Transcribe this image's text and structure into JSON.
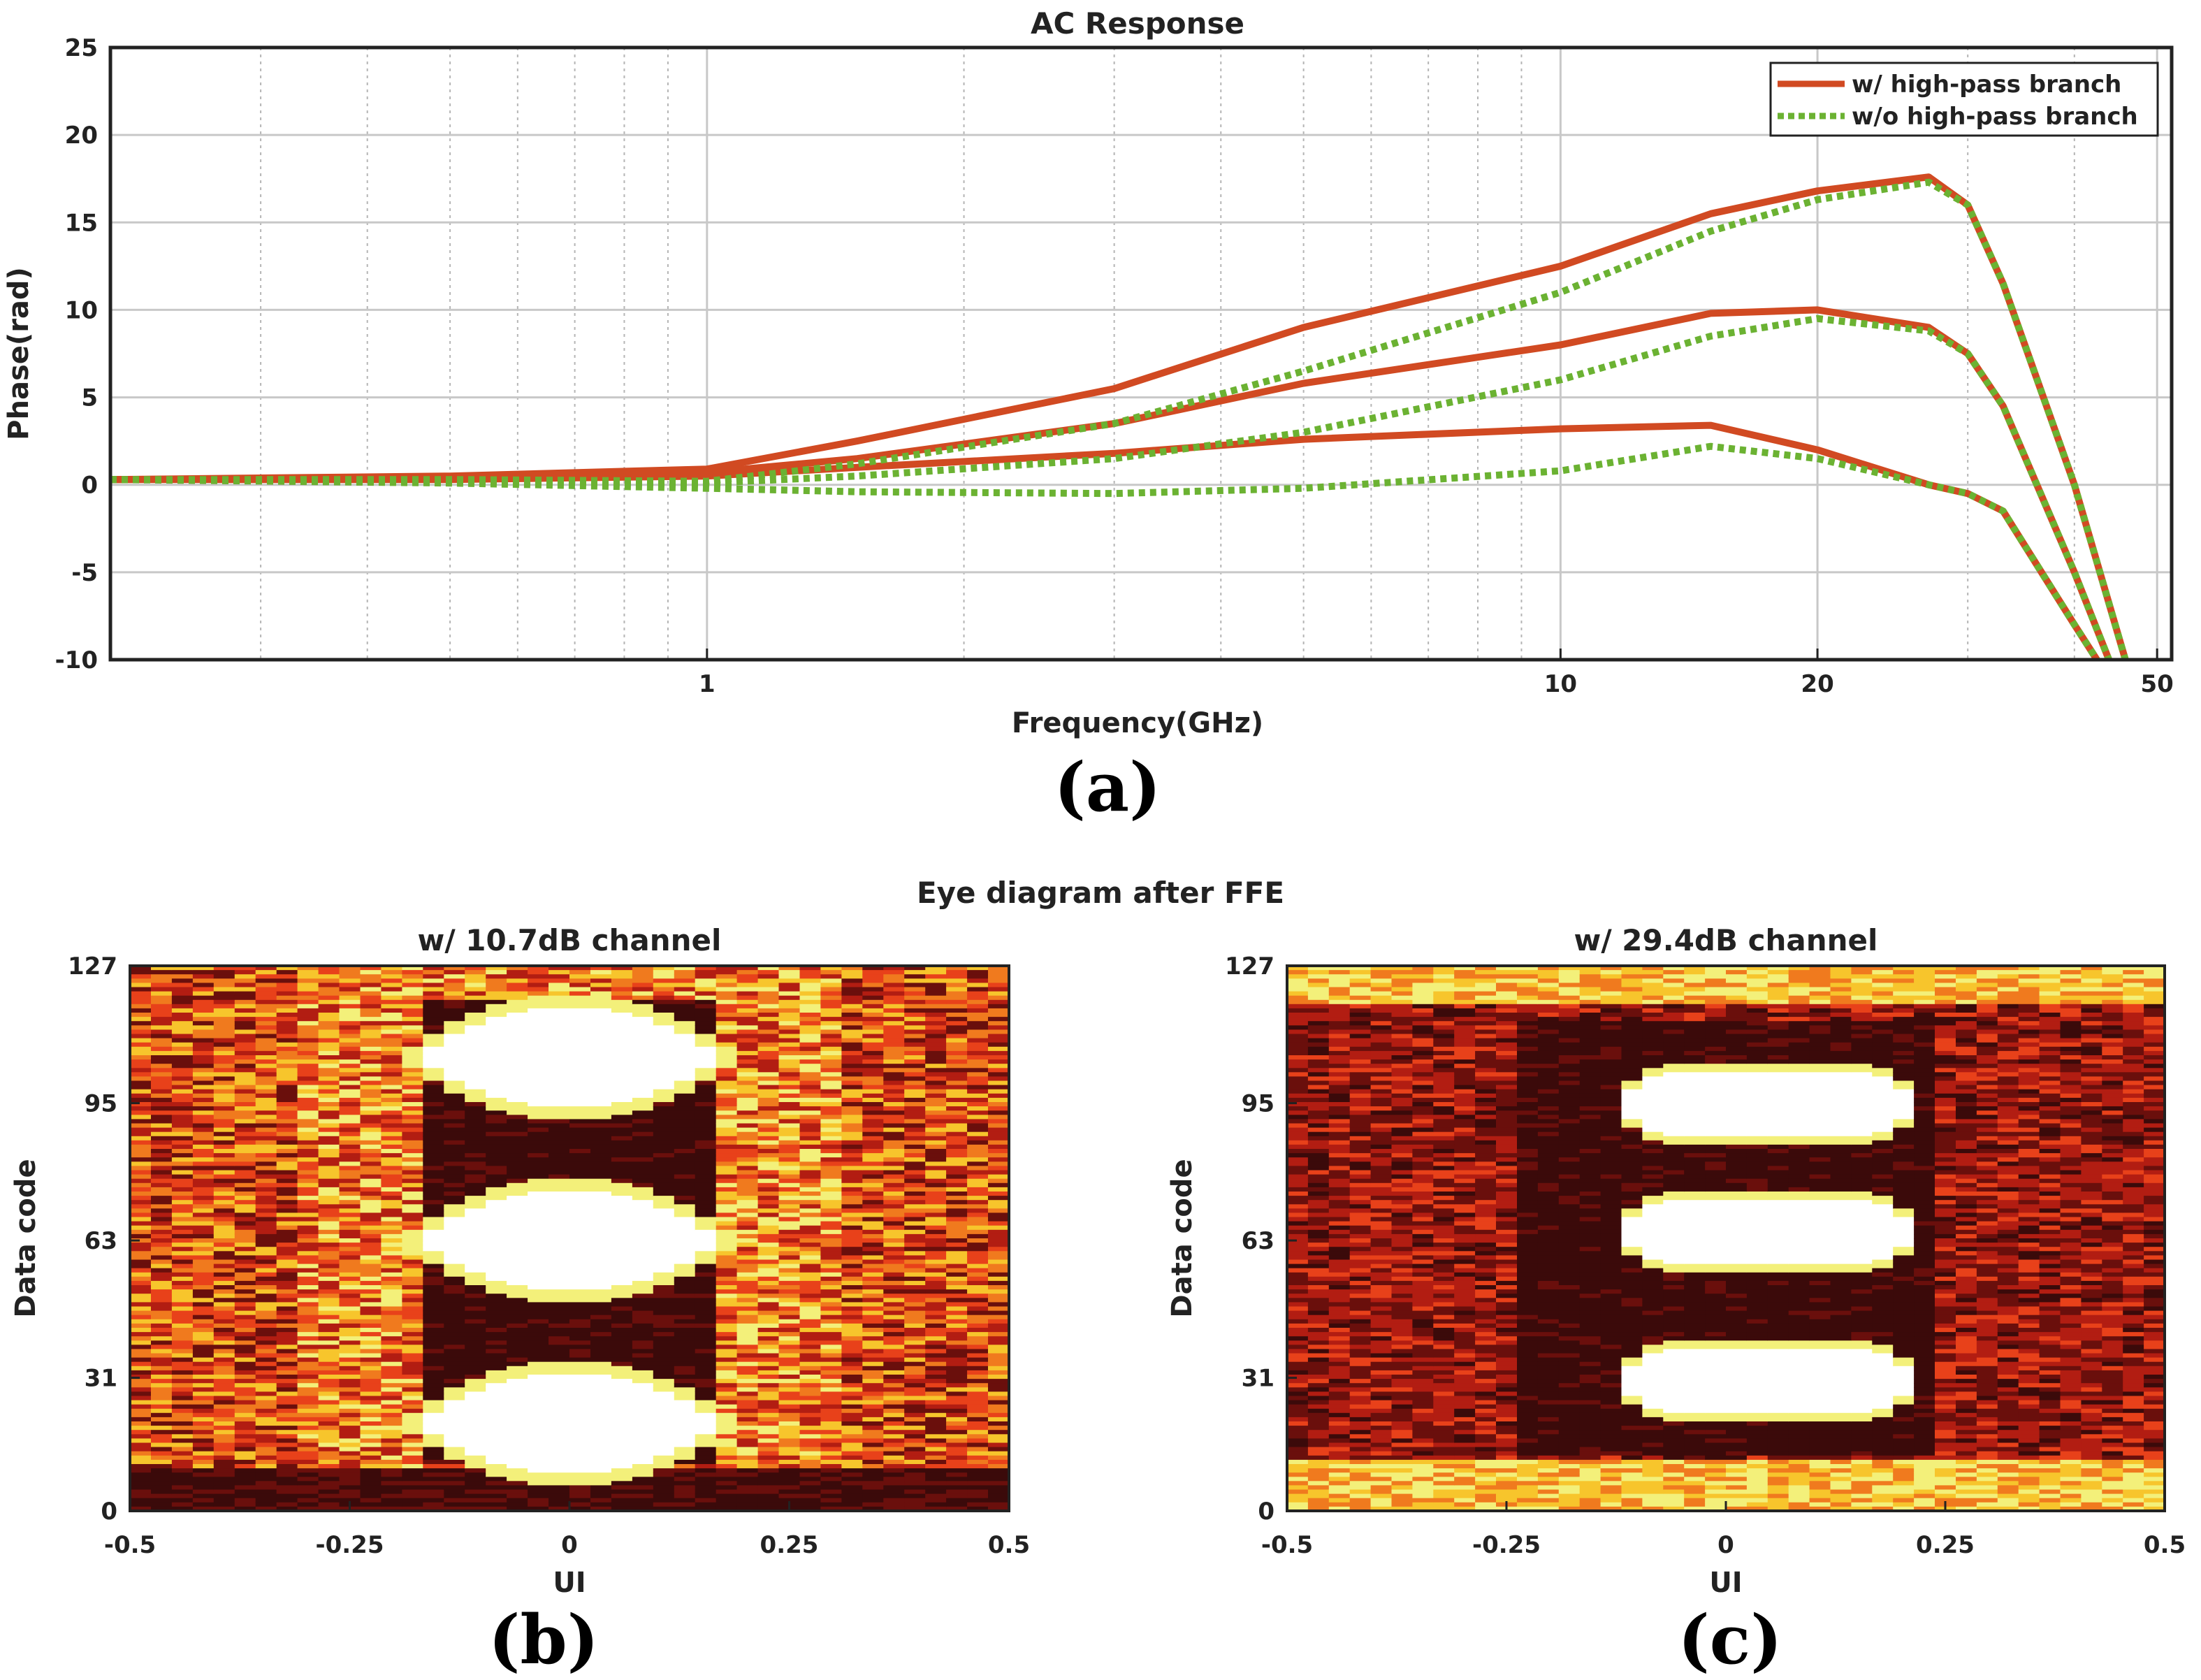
{
  "colors": {
    "with_hp": "#d14a22",
    "without_hp": "#6bb232",
    "grid_major": "#c8c8c8",
    "grid_minor": "#b5b5b5",
    "heat": [
      "#3b0a0a",
      "#6a0f0c",
      "#b21d12",
      "#e8411a",
      "#f07a1e",
      "#f7c52c",
      "#f3f07a",
      "#ffffff"
    ]
  },
  "chart_data": [
    {
      "id": "a",
      "type": "line",
      "title": "AC Response",
      "xlabel": "Frequency(GHz)",
      "ylabel": "Phase(rad)",
      "caption": "(a)",
      "xscale": "log",
      "xlim": [
        0.2,
        52
      ],
      "ylim": [
        -10,
        25
      ],
      "xticks": [
        1,
        10,
        20,
        50
      ],
      "xticklabels": [
        "1",
        "10",
        "20",
        "50"
      ],
      "yticks": [
        -10,
        -5,
        0,
        5,
        10,
        15,
        20,
        25
      ],
      "yticklabels": [
        "-10",
        "-5",
        "0",
        "5",
        "10",
        "15",
        "20",
        "25"
      ],
      "grid": true,
      "legend": {
        "position": "top-right",
        "entries": [
          "w/ high-pass branch",
          "w/o high-pass branch"
        ]
      },
      "series": [
        {
          "name": "w/ high-pass branch",
          "style": "solid",
          "x": [
            0.2,
            0.5,
            1,
            1.5,
            3,
            5,
            10,
            15,
            20,
            27,
            30,
            33,
            40,
            45.9
          ],
          "y": [
            0.3,
            0.5,
            0.9,
            2.5,
            5.5,
            9.0,
            12.5,
            15.5,
            16.8,
            17.6,
            16.0,
            11.5,
            0.0,
            -10
          ]
        },
        {
          "name": "w/ high-pass branch",
          "style": "solid",
          "x": [
            0.2,
            0.5,
            1,
            1.5,
            3,
            5,
            10,
            15,
            20,
            27,
            30,
            33,
            40,
            43.9
          ],
          "y": [
            0.3,
            0.4,
            0.7,
            1.5,
            3.5,
            5.8,
            8.0,
            9.8,
            10.0,
            9.0,
            7.5,
            4.5,
            -5.0,
            -10
          ]
        },
        {
          "name": "w/ high-pass branch",
          "style": "solid",
          "x": [
            0.2,
            0.5,
            1,
            1.5,
            3,
            5,
            10,
            15,
            20,
            27,
            30,
            33,
            40,
            42.5
          ],
          "y": [
            0.3,
            0.3,
            0.5,
            1.0,
            1.8,
            2.6,
            3.2,
            3.4,
            2.0,
            0.0,
            -0.5,
            -1.5,
            -8.0,
            -10
          ]
        },
        {
          "name": "w/o high-pass branch",
          "style": "dotted",
          "x": [
            0.2,
            0.5,
            1,
            1.5,
            3,
            5,
            10,
            15,
            20,
            27,
            30,
            33,
            40,
            45.9
          ],
          "y": [
            0.3,
            0.3,
            0.2,
            1.2,
            3.5,
            6.5,
            11.0,
            14.5,
            16.3,
            17.3,
            16.0,
            11.5,
            0.0,
            -10
          ]
        },
        {
          "name": "w/o high-pass branch",
          "style": "dotted",
          "x": [
            0.2,
            0.5,
            1,
            1.5,
            3,
            5,
            10,
            15,
            20,
            27,
            30,
            33,
            40,
            43.9
          ],
          "y": [
            0.3,
            0.2,
            0.1,
            0.5,
            1.5,
            3.0,
            6.0,
            8.5,
            9.5,
            8.8,
            7.5,
            4.5,
            -5.0,
            -10
          ]
        },
        {
          "name": "w/o high-pass branch",
          "style": "dotted",
          "x": [
            0.2,
            0.5,
            1,
            1.5,
            3,
            5,
            10,
            15,
            20,
            27,
            30,
            33,
            40,
            42.5
          ],
          "y": [
            0.3,
            0.1,
            -0.2,
            -0.4,
            -0.5,
            -0.2,
            0.8,
            2.2,
            1.5,
            0.0,
            -0.5,
            -1.5,
            -8.0,
            -10
          ]
        }
      ]
    },
    {
      "id": "b",
      "type": "heatmap",
      "suptitle": "Eye diagram after FFE",
      "title": "w/ 10.7dB channel",
      "xlabel": "UI",
      "ylabel": "Data code",
      "caption": "(b)",
      "xlim": [
        -0.5,
        0.5
      ],
      "ylim": [
        0,
        127
      ],
      "xticks": [
        -0.5,
        -0.25,
        0,
        0.25,
        0.5
      ],
      "xticklabels": [
        "-0.5",
        "-0.25",
        "0",
        "0.25",
        "0.5"
      ],
      "yticks": [
        0,
        31,
        63,
        95,
        127
      ],
      "yticklabels": [
        "0",
        "31",
        "63",
        "95",
        "127"
      ],
      "eye_levels": [
        20,
        63,
        106
      ],
      "eye_span": [
        -0.15,
        0.15
      ]
    },
    {
      "id": "c",
      "type": "heatmap",
      "title": "w/ 29.4dB channel",
      "xlabel": "UI",
      "ylabel": "Data code",
      "caption": "(c)",
      "xlim": [
        -0.5,
        0.5
      ],
      "ylim": [
        0,
        127
      ],
      "xticks": [
        -0.5,
        -0.25,
        0,
        0.25,
        0.5
      ],
      "xticklabels": [
        "-0.5",
        "-0.25",
        "0",
        "0.25",
        "0.5"
      ],
      "yticks": [
        0,
        31,
        63,
        95,
        127
      ],
      "yticklabels": [
        "0",
        "31",
        "63",
        "95",
        "127"
      ],
      "eye_levels": [
        30,
        65,
        95
      ],
      "eye_span": [
        -0.12,
        0.22
      ]
    }
  ]
}
